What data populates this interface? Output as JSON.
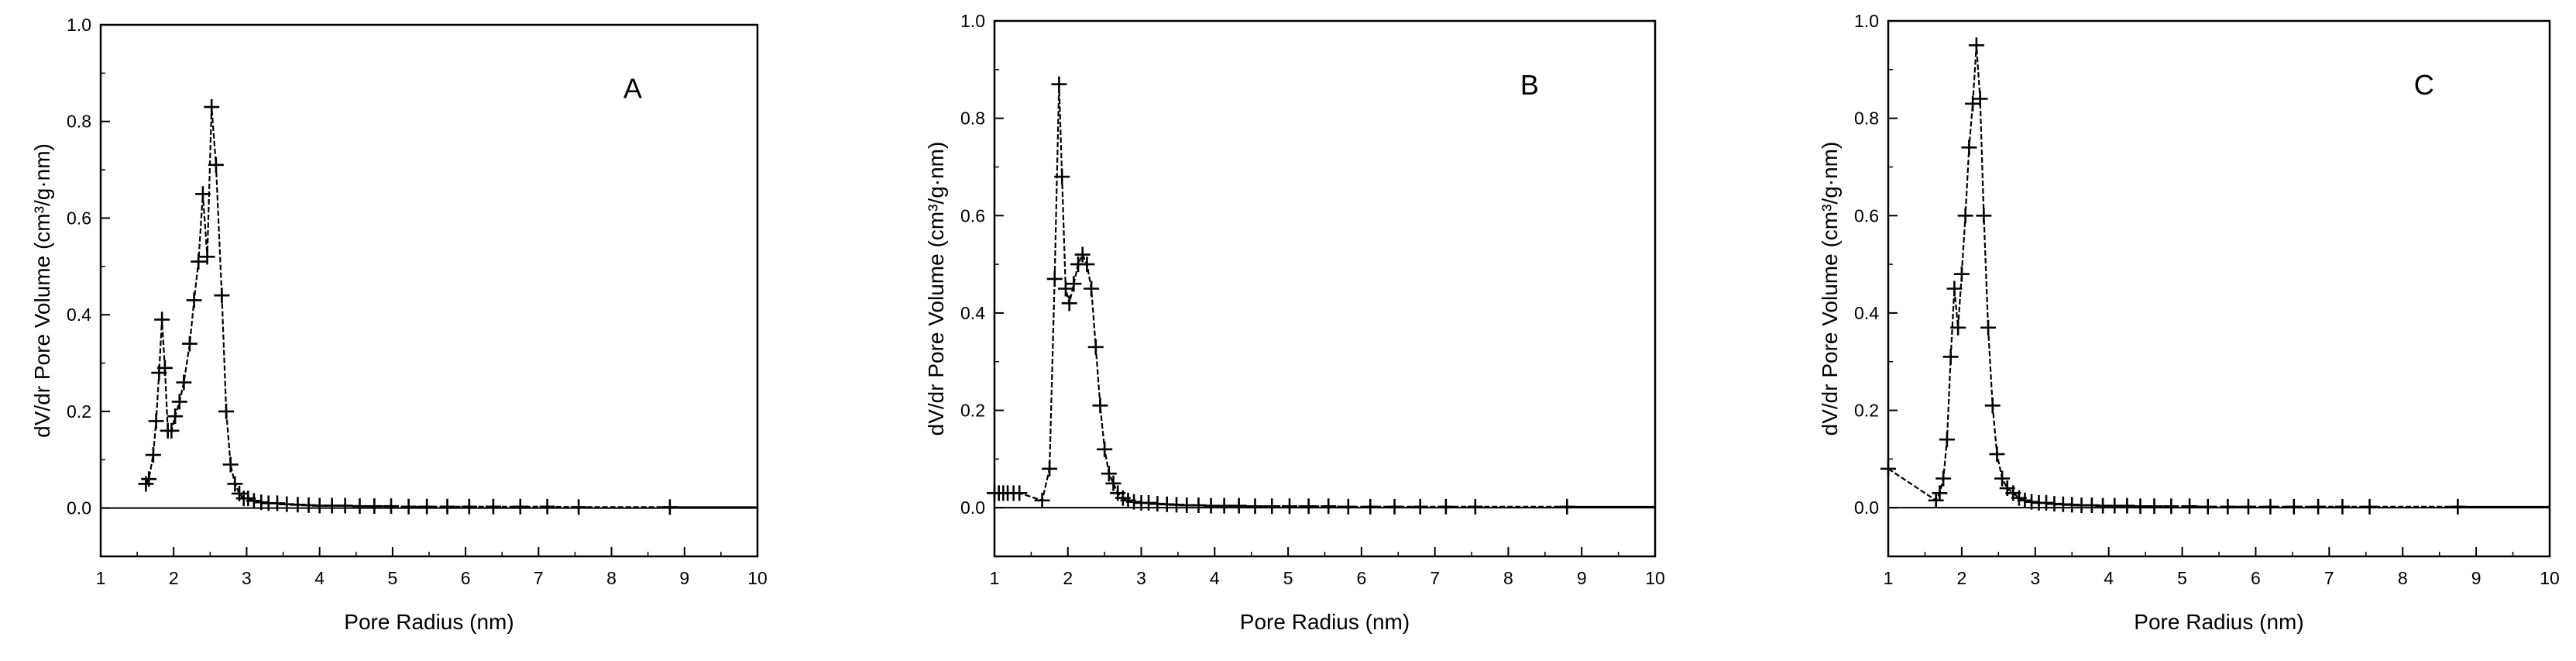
{
  "chart_data": [
    {
      "type": "scatter",
      "panel_label": "A",
      "xlabel": "Pore Radius (nm)",
      "ylabel": "dV/dr Pore Volume (cm³/g·nm)",
      "xlim": [
        1,
        10
      ],
      "ylim": [
        -0.1,
        1.0
      ],
      "xticks": [
        "1",
        "2",
        "3",
        "4",
        "5",
        "6",
        "7",
        "8",
        "9",
        "10"
      ],
      "yticks": [
        "0.0",
        "0.2",
        "0.4",
        "0.6",
        "0.8",
        "1.0"
      ],
      "grid": false,
      "series": [
        {
          "marker": "+",
          "x": [
            1.62,
            1.66,
            1.72,
            1.76,
            1.8,
            1.84,
            1.88,
            1.92,
            1.97,
            2.02,
            2.08,
            2.14,
            2.22,
            2.28,
            2.34,
            2.4,
            2.46,
            2.52,
            2.58,
            2.66,
            2.72,
            2.78,
            2.84,
            2.9,
            2.96,
            3.02,
            3.1,
            3.2,
            3.3,
            3.42,
            3.55,
            3.7,
            3.85,
            4.0,
            4.17,
            4.35,
            4.55,
            4.75,
            4.98,
            5.22,
            5.47,
            5.75,
            6.05,
            6.38,
            6.75,
            7.12,
            7.55,
            8.8
          ],
          "y": [
            0.05,
            0.06,
            0.11,
            0.18,
            0.28,
            0.39,
            0.29,
            0.16,
            0.16,
            0.19,
            0.22,
            0.26,
            0.34,
            0.43,
            0.51,
            0.65,
            0.52,
            0.83,
            0.71,
            0.44,
            0.2,
            0.09,
            0.05,
            0.03,
            0.02,
            0.02,
            0.015,
            0.012,
            0.01,
            0.01,
            0.008,
            0.007,
            0.006,
            0.005,
            0.005,
            0.005,
            0.004,
            0.004,
            0.004,
            0.003,
            0.003,
            0.003,
            0.003,
            0.003,
            0.003,
            0.003,
            0.002,
            0.002
          ]
        }
      ]
    },
    {
      "type": "scatter",
      "panel_label": "B",
      "xlabel": "Pore Radius (nm)",
      "ylabel": "dV/dr Pore Volume (cm³/g·nm)",
      "xlim": [
        1,
        10
      ],
      "ylim": [
        -0.1,
        1.0
      ],
      "xticks": [
        "1",
        "2",
        "3",
        "4",
        "5",
        "6",
        "7",
        "8",
        "9",
        "10"
      ],
      "yticks": [
        "0.0",
        "0.2",
        "0.4",
        "0.6",
        "0.8",
        "1.0"
      ],
      "grid": false,
      "series": [
        {
          "marker": "+",
          "x": [
            1.0,
            1.06,
            1.12,
            1.18,
            1.26,
            1.34,
            1.65,
            1.75,
            1.82,
            1.88,
            1.92,
            1.97,
            2.02,
            2.08,
            2.14,
            2.2,
            2.26,
            2.32,
            2.38,
            2.44,
            2.5,
            2.56,
            2.62,
            2.68,
            2.75,
            2.82,
            2.9,
            3.0,
            3.1,
            3.22,
            3.35,
            3.48,
            3.62,
            3.78,
            3.95,
            4.13,
            4.33,
            4.55,
            4.78,
            5.02,
            5.28,
            5.55,
            5.82,
            6.12,
            6.45,
            6.8,
            7.15,
            7.55,
            8.8
          ],
          "y": [
            0.03,
            0.03,
            0.03,
            0.03,
            0.03,
            0.03,
            0.015,
            0.08,
            0.47,
            0.87,
            0.68,
            0.45,
            0.42,
            0.46,
            0.5,
            0.52,
            0.5,
            0.45,
            0.33,
            0.21,
            0.12,
            0.07,
            0.05,
            0.03,
            0.02,
            0.015,
            0.012,
            0.01,
            0.01,
            0.008,
            0.007,
            0.006,
            0.005,
            0.005,
            0.004,
            0.004,
            0.004,
            0.003,
            0.003,
            0.003,
            0.003,
            0.003,
            0.002,
            0.002,
            0.002,
            0.002,
            0.002,
            0.002,
            0.002
          ]
        }
      ]
    },
    {
      "type": "scatter",
      "panel_label": "C",
      "xlabel": "Pore Radius (nm)",
      "ylabel": "dV/dr Pore Volume (cm³/g·nm)",
      "xlim": [
        1,
        10
      ],
      "ylim": [
        -0.1,
        1.0
      ],
      "xticks": [
        "1",
        "2",
        "3",
        "4",
        "5",
        "6",
        "7",
        "8",
        "9",
        "10"
      ],
      "yticks": [
        "0.0",
        "0.2",
        "0.4",
        "0.6",
        "0.8",
        "1.0"
      ],
      "grid": false,
      "series": [
        {
          "marker": "+",
          "x": [
            1.0,
            1.65,
            1.7,
            1.75,
            1.8,
            1.85,
            1.9,
            1.95,
            2.0,
            2.05,
            2.1,
            2.15,
            2.2,
            2.25,
            2.3,
            2.36,
            2.42,
            2.48,
            2.55,
            2.62,
            2.7,
            2.78,
            2.86,
            2.95,
            3.05,
            3.15,
            3.26,
            3.38,
            3.5,
            3.63,
            3.77,
            3.92,
            4.08,
            4.25,
            4.43,
            4.62,
            4.85,
            5.1,
            5.35,
            5.62,
            5.9,
            6.2,
            6.52,
            6.85,
            7.18,
            7.55,
            8.75
          ],
          "y": [
            0.08,
            0.015,
            0.03,
            0.06,
            0.14,
            0.31,
            0.45,
            0.37,
            0.48,
            0.6,
            0.74,
            0.83,
            0.95,
            0.84,
            0.6,
            0.37,
            0.21,
            0.11,
            0.06,
            0.04,
            0.03,
            0.02,
            0.015,
            0.012,
            0.01,
            0.01,
            0.008,
            0.007,
            0.006,
            0.005,
            0.005,
            0.004,
            0.004,
            0.004,
            0.003,
            0.003,
            0.003,
            0.003,
            0.002,
            0.002,
            0.002,
            0.002,
            0.002,
            0.002,
            0.002,
            0.002,
            0.002
          ]
        }
      ]
    }
  ]
}
